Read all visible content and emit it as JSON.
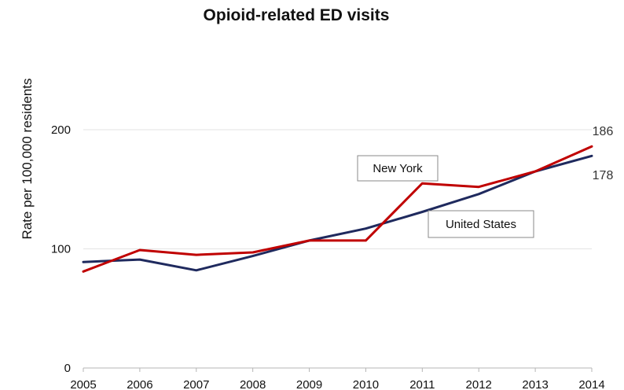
{
  "chart_data": {
    "type": "line",
    "title": "Opioid-related ED visits",
    "ylabel": "Rate per 100,000 residents",
    "xlabel": "",
    "x": [
      "2005",
      "2006",
      "2007",
      "2008",
      "2009",
      "2010",
      "2011",
      "2012",
      "2013",
      "2014"
    ],
    "ylim": [
      0,
      200
    ],
    "yticks": [
      0,
      100,
      200
    ],
    "grid": true,
    "legend": "none",
    "series": [
      {
        "name": "New York",
        "color": "#c00000",
        "values": [
          81,
          99,
          95,
          97,
          107,
          107,
          155,
          152,
          165,
          186
        ],
        "end_label": "186"
      },
      {
        "name": "United States",
        "color": "#1f2a5e",
        "values": [
          89,
          91,
          82,
          94,
          107,
          117,
          131,
          146,
          165,
          178
        ],
        "end_label": "178"
      }
    ]
  }
}
